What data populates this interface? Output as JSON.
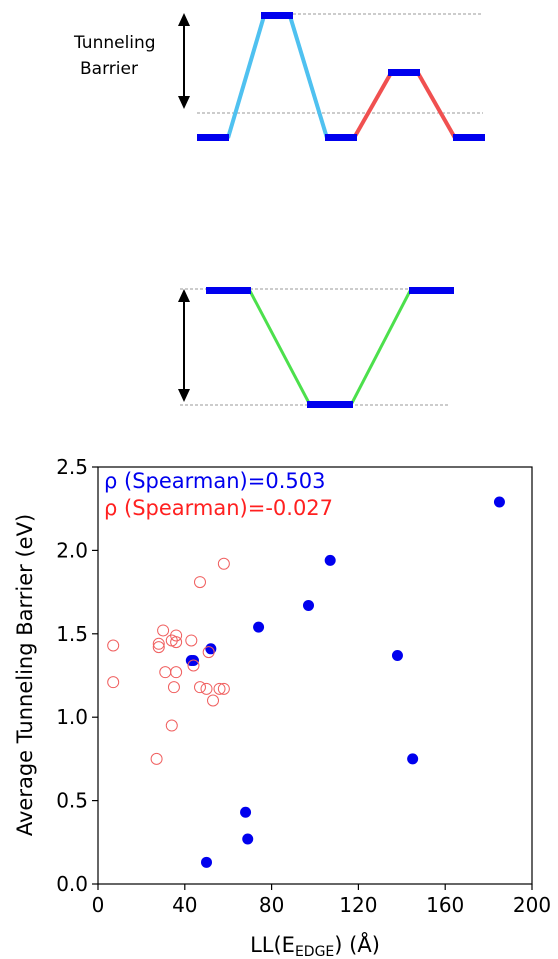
{
  "diagram_top": {
    "label_line1": "Tunneling",
    "label_line2": "Barrier"
  },
  "chart_data": {
    "type": "scatter",
    "xlabel": "LL(E",
    "xlabel_sub": "EDGE",
    "xlabel_suffix": ") (Å)",
    "ylabel": "Average Tunneling Barrier (eV)",
    "xlim": [
      0,
      200
    ],
    "ylim": [
      0,
      2.5
    ],
    "x_ticks": [
      0,
      40,
      80,
      120,
      160,
      200
    ],
    "y_ticks": [
      0.0,
      0.5,
      1.0,
      1.5,
      2.0,
      2.5
    ],
    "x_tick_labels": [
      "0",
      "40",
      "80",
      "120",
      "160",
      "200"
    ],
    "y_tick_labels": [
      "0.0",
      "0.5",
      "1.0",
      "1.5",
      "2.0",
      "2.5"
    ],
    "grid": false,
    "annotations": [
      {
        "text": "ρ (Spearman)=0.503",
        "color": "#0000ee"
      },
      {
        "text": "ρ (Spearman)=-0.027",
        "color": "#ff2020"
      }
    ],
    "series": [
      {
        "color": "#0000ee",
        "marker": "filled-circle",
        "points": [
          [
            185,
            2.29
          ],
          [
            107,
            1.94
          ],
          [
            97,
            1.67
          ],
          [
            74,
            1.54
          ],
          [
            52,
            1.41
          ],
          [
            43,
            1.34
          ],
          [
            44,
            1.34
          ],
          [
            138,
            1.37
          ],
          [
            145,
            0.75
          ],
          [
            68,
            0.43
          ],
          [
            69,
            0.27
          ],
          [
            50,
            0.13
          ]
        ]
      },
      {
        "color": "#f06060",
        "marker": "open-circle",
        "points": [
          [
            58,
            1.92
          ],
          [
            47,
            1.81
          ],
          [
            30,
            1.52
          ],
          [
            36,
            1.49
          ],
          [
            34,
            1.46
          ],
          [
            43,
            1.46
          ],
          [
            36,
            1.45
          ],
          [
            28,
            1.44
          ],
          [
            28,
            1.42
          ],
          [
            7,
            1.43
          ],
          [
            51,
            1.39
          ],
          [
            44,
            1.31
          ],
          [
            31,
            1.27
          ],
          [
            36,
            1.27
          ],
          [
            7,
            1.21
          ],
          [
            35,
            1.18
          ],
          [
            47,
            1.18
          ],
          [
            50,
            1.17
          ],
          [
            56,
            1.17
          ],
          [
            58,
            1.17
          ],
          [
            53,
            1.1
          ],
          [
            34,
            0.95
          ],
          [
            27,
            0.75
          ]
        ]
      }
    ]
  }
}
